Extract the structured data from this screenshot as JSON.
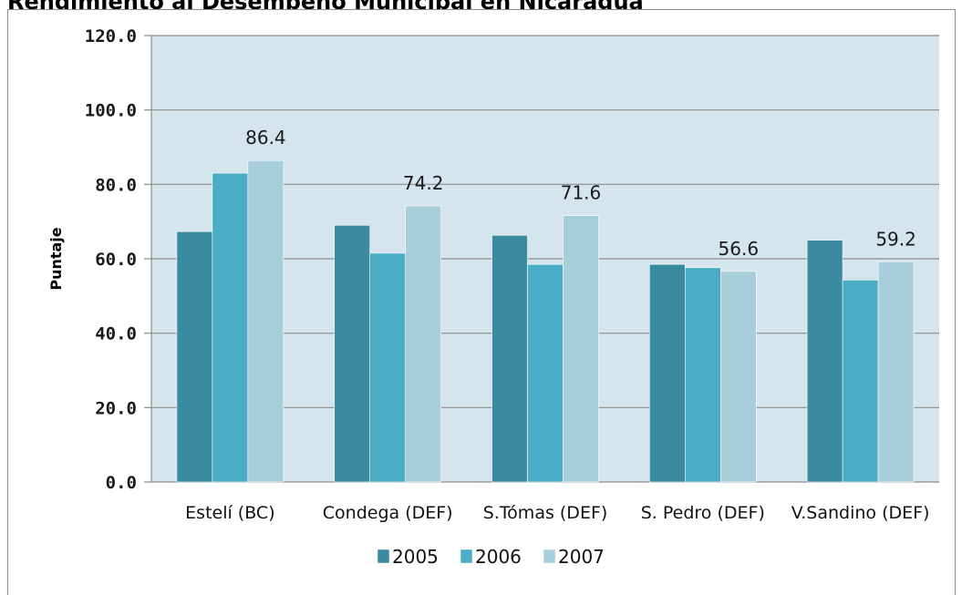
{
  "title": "Rendimiento al Desempeño Municipal en Nicaragua",
  "colors": {
    "plot_bg": "#d5e5ed",
    "grid": "#8c8c8c",
    "series": [
      "#3a8aa0",
      "#4bacc6",
      "#a8cddb"
    ]
  },
  "chart_data": {
    "type": "bar",
    "title": "Rendimiento al Desempeño Municipal en Nicaragua",
    "xlabel": "",
    "ylabel": "Puntaje",
    "ylim": [
      0,
      120
    ],
    "yticks": [
      "0.0",
      "20.0",
      "40.0",
      "60.0",
      "80.0",
      "100.0",
      "120.0"
    ],
    "yticks_values": [
      0,
      20,
      40,
      60,
      80,
      100,
      120
    ],
    "categories": [
      "Estelí (BC)",
      "Condega (DEF)",
      "S.Tómas (DEF)",
      "S. Pedro (DEF)",
      "V.Sandino (DEF)"
    ],
    "series": [
      {
        "name": "2005",
        "values": [
          67.3,
          69.0,
          66.3,
          58.5,
          65.0
        ]
      },
      {
        "name": "2006",
        "values": [
          83.0,
          61.5,
          58.5,
          57.6,
          54.3
        ]
      },
      {
        "name": "2007",
        "values": [
          86.4,
          74.2,
          71.6,
          56.6,
          59.2
        ]
      }
    ],
    "data_labels": [
      "86.4",
      "74.2",
      "71.6",
      "56.6",
      "59.2"
    ],
    "grid": true,
    "legend": "bottom"
  }
}
